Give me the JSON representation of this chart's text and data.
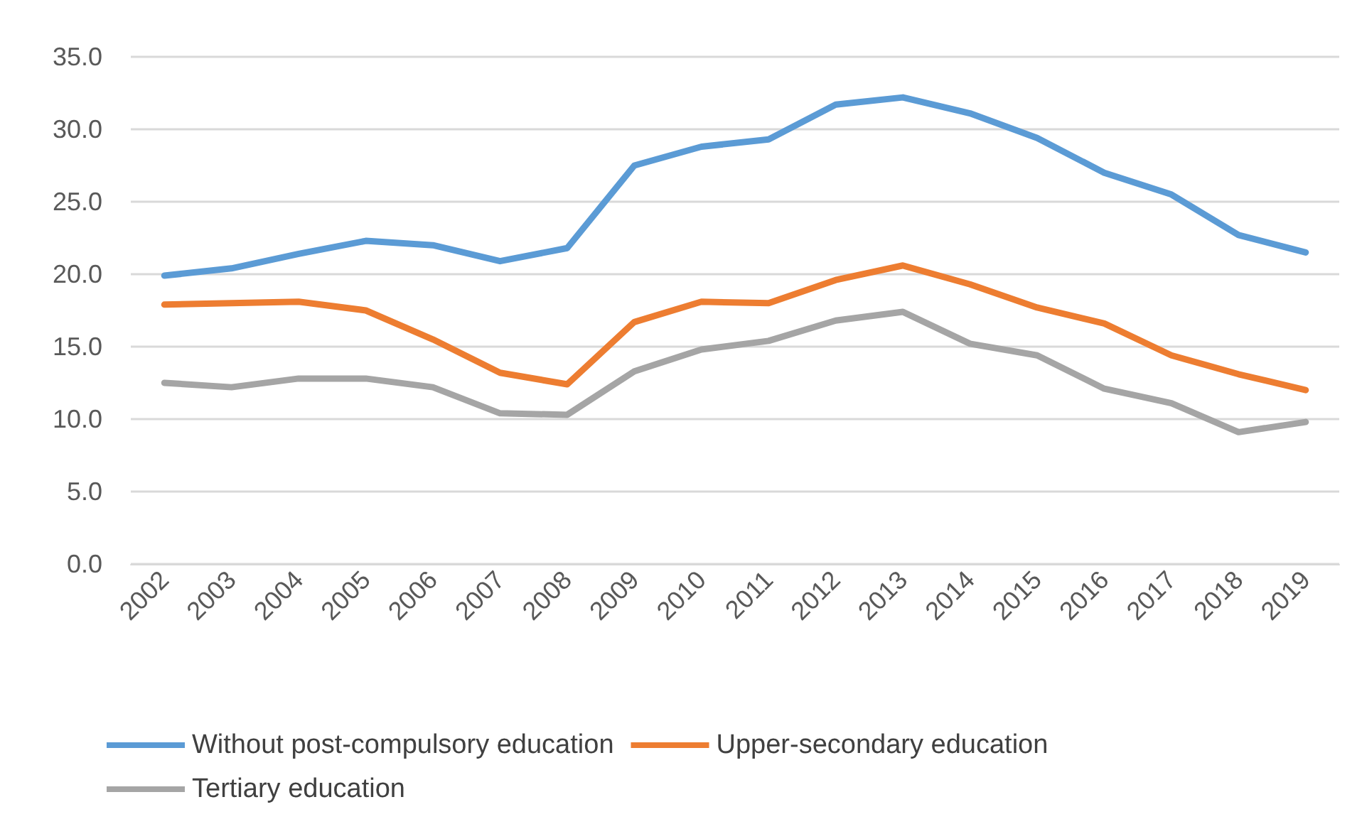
{
  "chart_data": {
    "type": "line",
    "categories": [
      "2002",
      "2003",
      "2004",
      "2005",
      "2006",
      "2007",
      "2008",
      "2009",
      "2010",
      "2011",
      "2012",
      "2013",
      "2014",
      "2015",
      "2016",
      "2017",
      "2018",
      "2019"
    ],
    "series": [
      {
        "name": "Without post-compulsory education",
        "color": "#5b9bd5",
        "values": [
          19.9,
          20.4,
          21.4,
          22.3,
          22.0,
          20.9,
          21.8,
          27.5,
          28.8,
          29.3,
          31.7,
          32.2,
          31.1,
          29.4,
          27.0,
          25.5,
          22.7,
          21.5
        ]
      },
      {
        "name": "Upper-secondary education",
        "color": "#ed7d31",
        "values": [
          17.9,
          18.0,
          18.1,
          17.5,
          15.5,
          13.2,
          12.4,
          16.7,
          18.1,
          18.0,
          19.6,
          20.6,
          19.3,
          17.7,
          16.6,
          14.4,
          13.1,
          12.0
        ]
      },
      {
        "name": "Tertiary education",
        "color": "#a5a5a5",
        "values": [
          12.5,
          12.2,
          12.8,
          12.8,
          12.2,
          10.4,
          10.3,
          13.3,
          14.8,
          15.4,
          16.8,
          17.4,
          15.2,
          14.4,
          12.1,
          11.1,
          9.1,
          9.8
        ]
      }
    ],
    "ylim": [
      0,
      35
    ],
    "yticks": [
      {
        "value": 0,
        "label": "0.0"
      },
      {
        "value": 5,
        "label": "5.0"
      },
      {
        "value": 10,
        "label": "10.0"
      },
      {
        "value": 15,
        "label": "15.0"
      },
      {
        "value": 20,
        "label": "20.0"
      },
      {
        "value": 25,
        "label": "25.0"
      },
      {
        "value": 30,
        "label": "30.0"
      },
      {
        "value": 35,
        "label": "35.0"
      }
    ],
    "grid": "y",
    "legend": "bottom",
    "marker": "none",
    "line_style": "solid"
  }
}
